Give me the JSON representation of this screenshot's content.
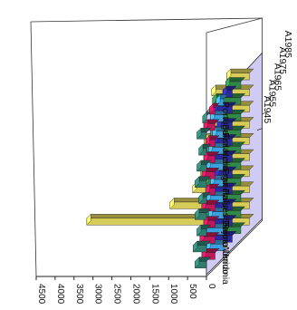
{
  "chart_data": {
    "type": "bar",
    "subtype": "3d-bar",
    "title": "",
    "xlabel": "",
    "ylabel": "",
    "y_ticks": [
      "0",
      "500",
      "1000",
      "1500",
      "2000",
      "2500",
      "3000",
      "3500",
      "4000",
      "4500"
    ],
    "ylim": [
      0,
      4500
    ],
    "categories": [
      "Alemania",
      "Reino Unido",
      "Suecia",
      "Países Bajos",
      "Italia",
      "Francia",
      "Noruega",
      "Finlandia",
      "Suiza",
      "Portugal"
    ],
    "series": [
      {
        "name": "A1945",
        "color": "#2e7d6e",
        "values": [
          300,
          350,
          250,
          300,
          200,
          300,
          250,
          200,
          250,
          100
        ]
      },
      {
        "name": "A1955",
        "color": "#c0185a",
        "values": [
          350,
          400,
          300,
          350,
          250,
          350,
          300,
          250,
          300,
          150
        ]
      },
      {
        "name": "A1965",
        "color": "#3aa0e0",
        "values": [
          450,
          550,
          400,
          450,
          350,
          450,
          400,
          300,
          350,
          200
        ]
      },
      {
        "name": "A1975",
        "color": "#2a2aa8",
        "values": [
          600,
          700,
          550,
          600,
          450,
          550,
          500,
          400,
          500,
          250
        ]
      },
      {
        "name": "A1985",
        "color": "#2f8a4a",
        "values": [
          1000,
          1100,
          900,
          950,
          700,
          900,
          800,
          600,
          750,
          400
        ]
      },
      {
        "name": "A1985",
        "color": "#d8cc58",
        "values": [
          4300,
          2100,
          1500,
          1300,
          1000,
          1200,
          1100,
          800,
          1000,
          600
        ]
      }
    ],
    "grid": false,
    "legend": "none",
    "orientation": "rotated-90-clockwise"
  }
}
